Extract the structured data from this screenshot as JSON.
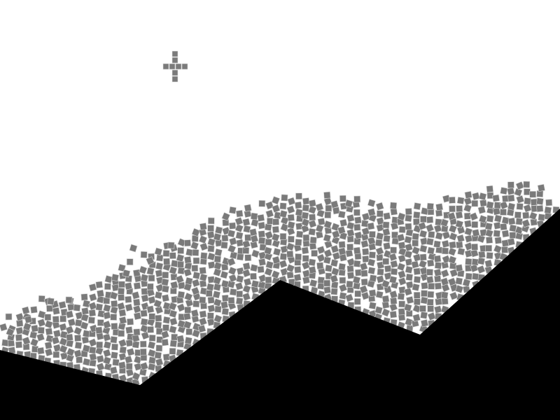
{
  "scene": {
    "background_color": "#ffffff",
    "terrain_color": "#000000",
    "block_color": "#7a7a7a",
    "block_outline_color": "#d9d9d9"
  },
  "spawner": {
    "icon": "plus-shaped-block-spawner",
    "color": "#7a7a7a"
  },
  "pile": {
    "icon": "falling-square-blocks",
    "color": "#7a7a7a"
  }
}
